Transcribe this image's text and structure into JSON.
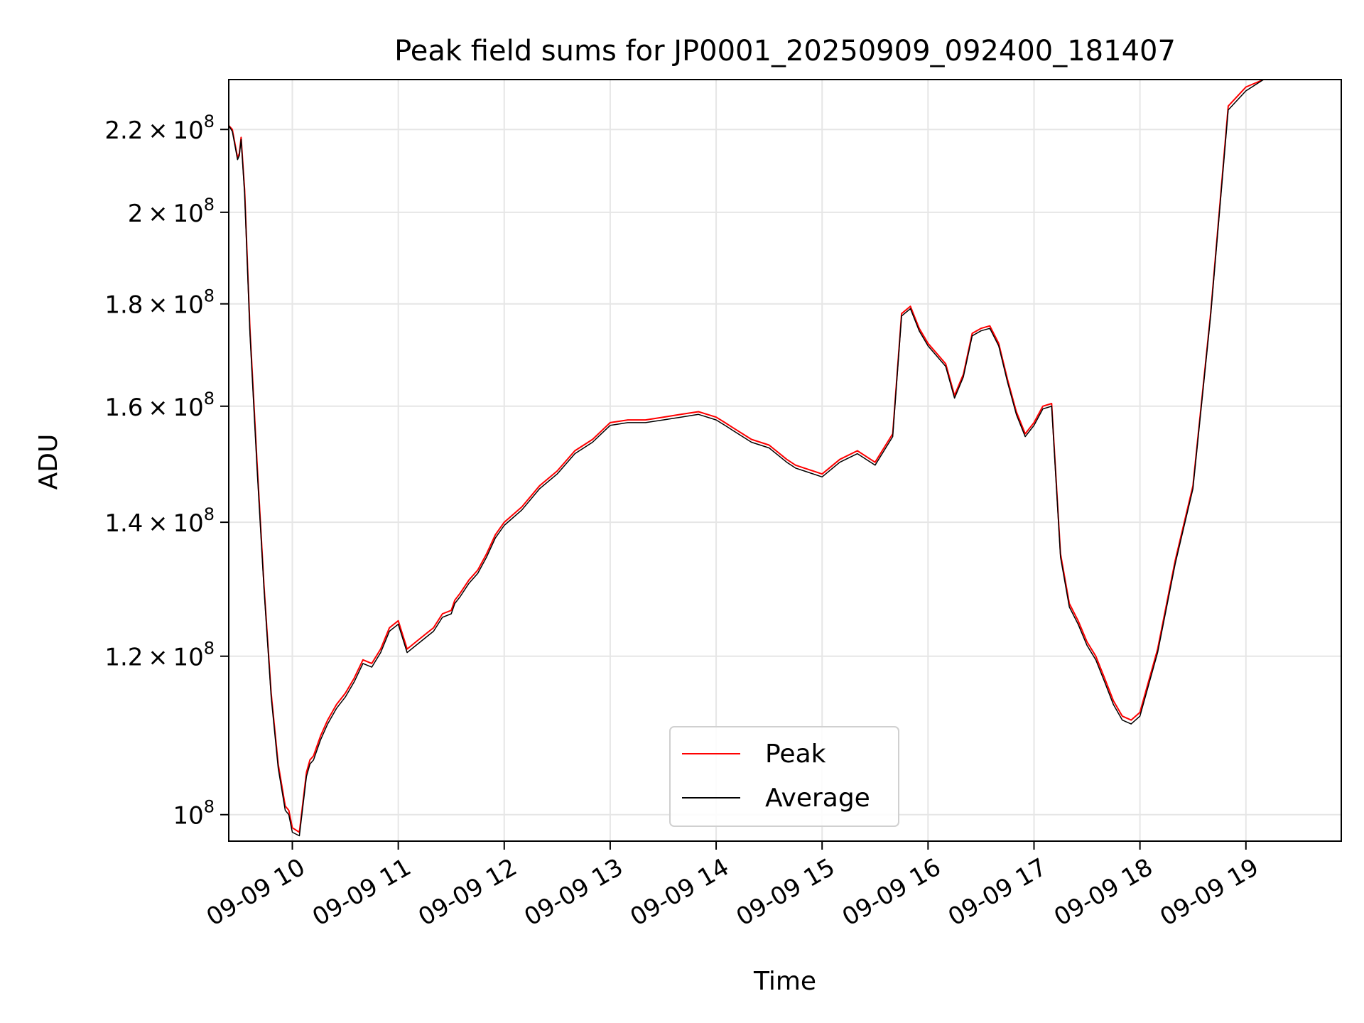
{
  "chart_data": {
    "type": "line",
    "title": "Peak field sums for JP0001_20250909_092400_181407",
    "xlabel": "Time",
    "ylabel": "ADU",
    "x_range": [
      "09-09 09:24",
      "09-09 19:54"
    ],
    "x_ticks": [
      "09-09 10",
      "09-09 11",
      "09-09 12",
      "09-09 13",
      "09-09 14",
      "09-09 15",
      "09-09 16",
      "09-09 17",
      "09-09 18",
      "09-09 19"
    ],
    "y_scale": "log",
    "ylim": [
      97000000,
      233000000
    ],
    "y_ticks": [
      {
        "value": 100000000,
        "mantissa": "",
        "exponent": "8"
      },
      {
        "value": 120000000,
        "mantissa": "1.2",
        "exponent": "8"
      },
      {
        "value": 140000000,
        "mantissa": "1.4",
        "exponent": "8"
      },
      {
        "value": 160000000,
        "mantissa": "1.6",
        "exponent": "8"
      },
      {
        "value": 180000000,
        "mantissa": "1.8",
        "exponent": "8"
      },
      {
        "value": 200000000,
        "mantissa": "2",
        "exponent": "8"
      },
      {
        "value": 220000000,
        "mantissa": "2.2",
        "exponent": "8"
      }
    ],
    "tick_times_label": "09-09",
    "grid": true,
    "legend_position": "lower center",
    "series": [
      {
        "name": "Peak",
        "color": "#ff0000",
        "x": [
          "09:24",
          "09:26",
          "09:29",
          "09:30",
          "09:31",
          "09:33",
          "09:36",
          "09:40",
          "09:44",
          "09:48",
          "09:52",
          "09:56",
          "09:58",
          "10:00",
          "10:04",
          "10:08",
          "10:10",
          "10:12",
          "10:16",
          "10:20",
          "10:25",
          "10:30",
          "10:35",
          "10:40",
          "10:45",
          "10:50",
          "10:55",
          "11:00",
          "11:05",
          "11:10",
          "11:15",
          "11:20",
          "11:25",
          "11:30",
          "11:32",
          "11:35",
          "11:40",
          "11:45",
          "11:50",
          "11:55",
          "12:00",
          "12:10",
          "12:20",
          "12:30",
          "12:40",
          "12:50",
          "12:55",
          "13:00",
          "13:10",
          "13:20",
          "13:30",
          "13:40",
          "13:50",
          "14:00",
          "14:05",
          "14:10",
          "14:20",
          "14:30",
          "14:40",
          "14:45",
          "14:50",
          "15:00",
          "15:10",
          "15:20",
          "15:30",
          "15:40",
          "15:45",
          "15:50",
          "15:55",
          "16:00",
          "16:10",
          "16:15",
          "16:20",
          "16:25",
          "16:30",
          "16:35",
          "16:40",
          "16:45",
          "16:50",
          "16:55",
          "17:00",
          "17:05",
          "17:10",
          "17:15",
          "17:20",
          "17:25",
          "17:30",
          "17:35",
          "17:40",
          "17:45",
          "17:50",
          "17:55",
          "18:00",
          "18:10",
          "18:20",
          "18:30",
          "18:40",
          "18:50",
          "19:00",
          "19:10",
          "19:20",
          "19:25",
          "19:30",
          "19:35",
          "19:40",
          "19:45",
          "19:50",
          "19:54"
        ],
        "y": [
          221000000,
          220000000,
          213000000,
          214000000,
          218000000,
          205000000,
          175000000,
          150000000,
          130000000,
          115000000,
          106000000,
          101000000,
          100500000,
          98500000,
          98000000,
          105000000,
          106500000,
          107000000,
          109500000,
          111500000,
          113500000,
          115000000,
          117000000,
          119500000,
          119000000,
          121000000,
          124000000,
          125000000,
          121000000,
          122000000,
          123000000,
          124000000,
          126000000,
          126500000,
          128000000,
          129000000,
          131000000,
          132500000,
          135000000,
          138000000,
          140000000,
          142500000,
          146000000,
          148500000,
          152000000,
          154000000,
          155500000,
          157000000,
          157500000,
          157500000,
          158000000,
          158500000,
          159000000,
          158000000,
          157000000,
          156000000,
          154000000,
          153000000,
          150500000,
          149500000,
          149000000,
          148000000,
          150500000,
          152000000,
          150000000,
          155000000,
          178000000,
          179500000,
          175000000,
          172000000,
          168000000,
          162000000,
          166000000,
          174000000,
          175000000,
          175500000,
          172000000,
          165000000,
          159000000,
          155000000,
          157000000,
          160000000,
          160500000,
          135000000,
          127500000,
          125000000,
          122000000,
          120000000,
          117000000,
          114000000,
          112000000,
          111500000,
          112500000,
          121000000,
          134000000,
          146000000,
          178000000,
          226000000,
          231000000,
          233000000,
          233000000,
          233000000,
          233000000,
          233000000,
          233000000,
          233000000,
          233000000,
          233000000
        ]
      },
      {
        "name": "Average",
        "color": "#000000",
        "x": [
          "09:24",
          "09:26",
          "09:29",
          "09:30",
          "09:31",
          "09:33",
          "09:36",
          "09:40",
          "09:44",
          "09:48",
          "09:52",
          "09:56",
          "09:58",
          "10:00",
          "10:04",
          "10:08",
          "10:10",
          "10:12",
          "10:16",
          "10:20",
          "10:25",
          "10:30",
          "10:35",
          "10:40",
          "10:45",
          "10:50",
          "10:55",
          "11:00",
          "11:05",
          "11:10",
          "11:15",
          "11:20",
          "11:25",
          "11:30",
          "11:32",
          "11:35",
          "11:40",
          "11:45",
          "11:50",
          "11:55",
          "12:00",
          "12:10",
          "12:20",
          "12:30",
          "12:40",
          "12:50",
          "12:55",
          "13:00",
          "13:10",
          "13:20",
          "13:30",
          "13:40",
          "13:50",
          "14:00",
          "14:05",
          "14:10",
          "14:20",
          "14:30",
          "14:40",
          "14:45",
          "14:50",
          "15:00",
          "15:10",
          "15:20",
          "15:30",
          "15:40",
          "15:45",
          "15:50",
          "15:55",
          "16:00",
          "16:10",
          "16:15",
          "16:20",
          "16:25",
          "16:30",
          "16:35",
          "16:40",
          "16:45",
          "16:50",
          "16:55",
          "17:00",
          "17:05",
          "17:10",
          "17:15",
          "17:20",
          "17:25",
          "17:30",
          "17:35",
          "17:40",
          "17:45",
          "17:50",
          "17:55",
          "18:00",
          "18:10",
          "18:20",
          "18:30",
          "18:40",
          "18:50",
          "19:00",
          "19:10",
          "19:20",
          "19:25",
          "19:30",
          "19:35",
          "19:40",
          "19:45",
          "19:50",
          "19:54"
        ],
        "y": [
          221000000,
          219500000,
          212500000,
          213500000,
          217500000,
          204000000,
          174000000,
          149000000,
          129500000,
          114500000,
          105500000,
          100500000,
          100000000,
          98000000,
          97600000,
          104500000,
          106000000,
          106500000,
          109000000,
          111000000,
          113000000,
          114500000,
          116500000,
          119000000,
          118500000,
          120500000,
          123500000,
          124500000,
          120500000,
          121500000,
          122500000,
          123500000,
          125500000,
          126000000,
          127500000,
          128500000,
          130500000,
          132000000,
          134500000,
          137500000,
          139500000,
          142000000,
          145500000,
          148000000,
          151500000,
          153500000,
          155000000,
          156500000,
          157000000,
          157000000,
          157500000,
          158000000,
          158500000,
          157500000,
          156500000,
          155500000,
          153500000,
          152500000,
          150000000,
          149000000,
          148500000,
          147500000,
          150000000,
          151500000,
          149500000,
          154500000,
          177500000,
          179000000,
          174500000,
          171500000,
          167500000,
          161500000,
          165500000,
          173500000,
          174500000,
          175000000,
          171500000,
          164500000,
          158500000,
          154500000,
          156500000,
          159500000,
          160000000,
          134500000,
          127000000,
          124500000,
          121500000,
          119500000,
          116500000,
          113500000,
          111500000,
          111000000,
          112000000,
          120500000,
          133500000,
          145500000,
          177500000,
          225000000,
          230000000,
          233000000,
          233000000,
          233000000,
          233000000,
          233000000,
          233000000,
          233000000,
          233000000,
          233000000
        ]
      }
    ]
  }
}
